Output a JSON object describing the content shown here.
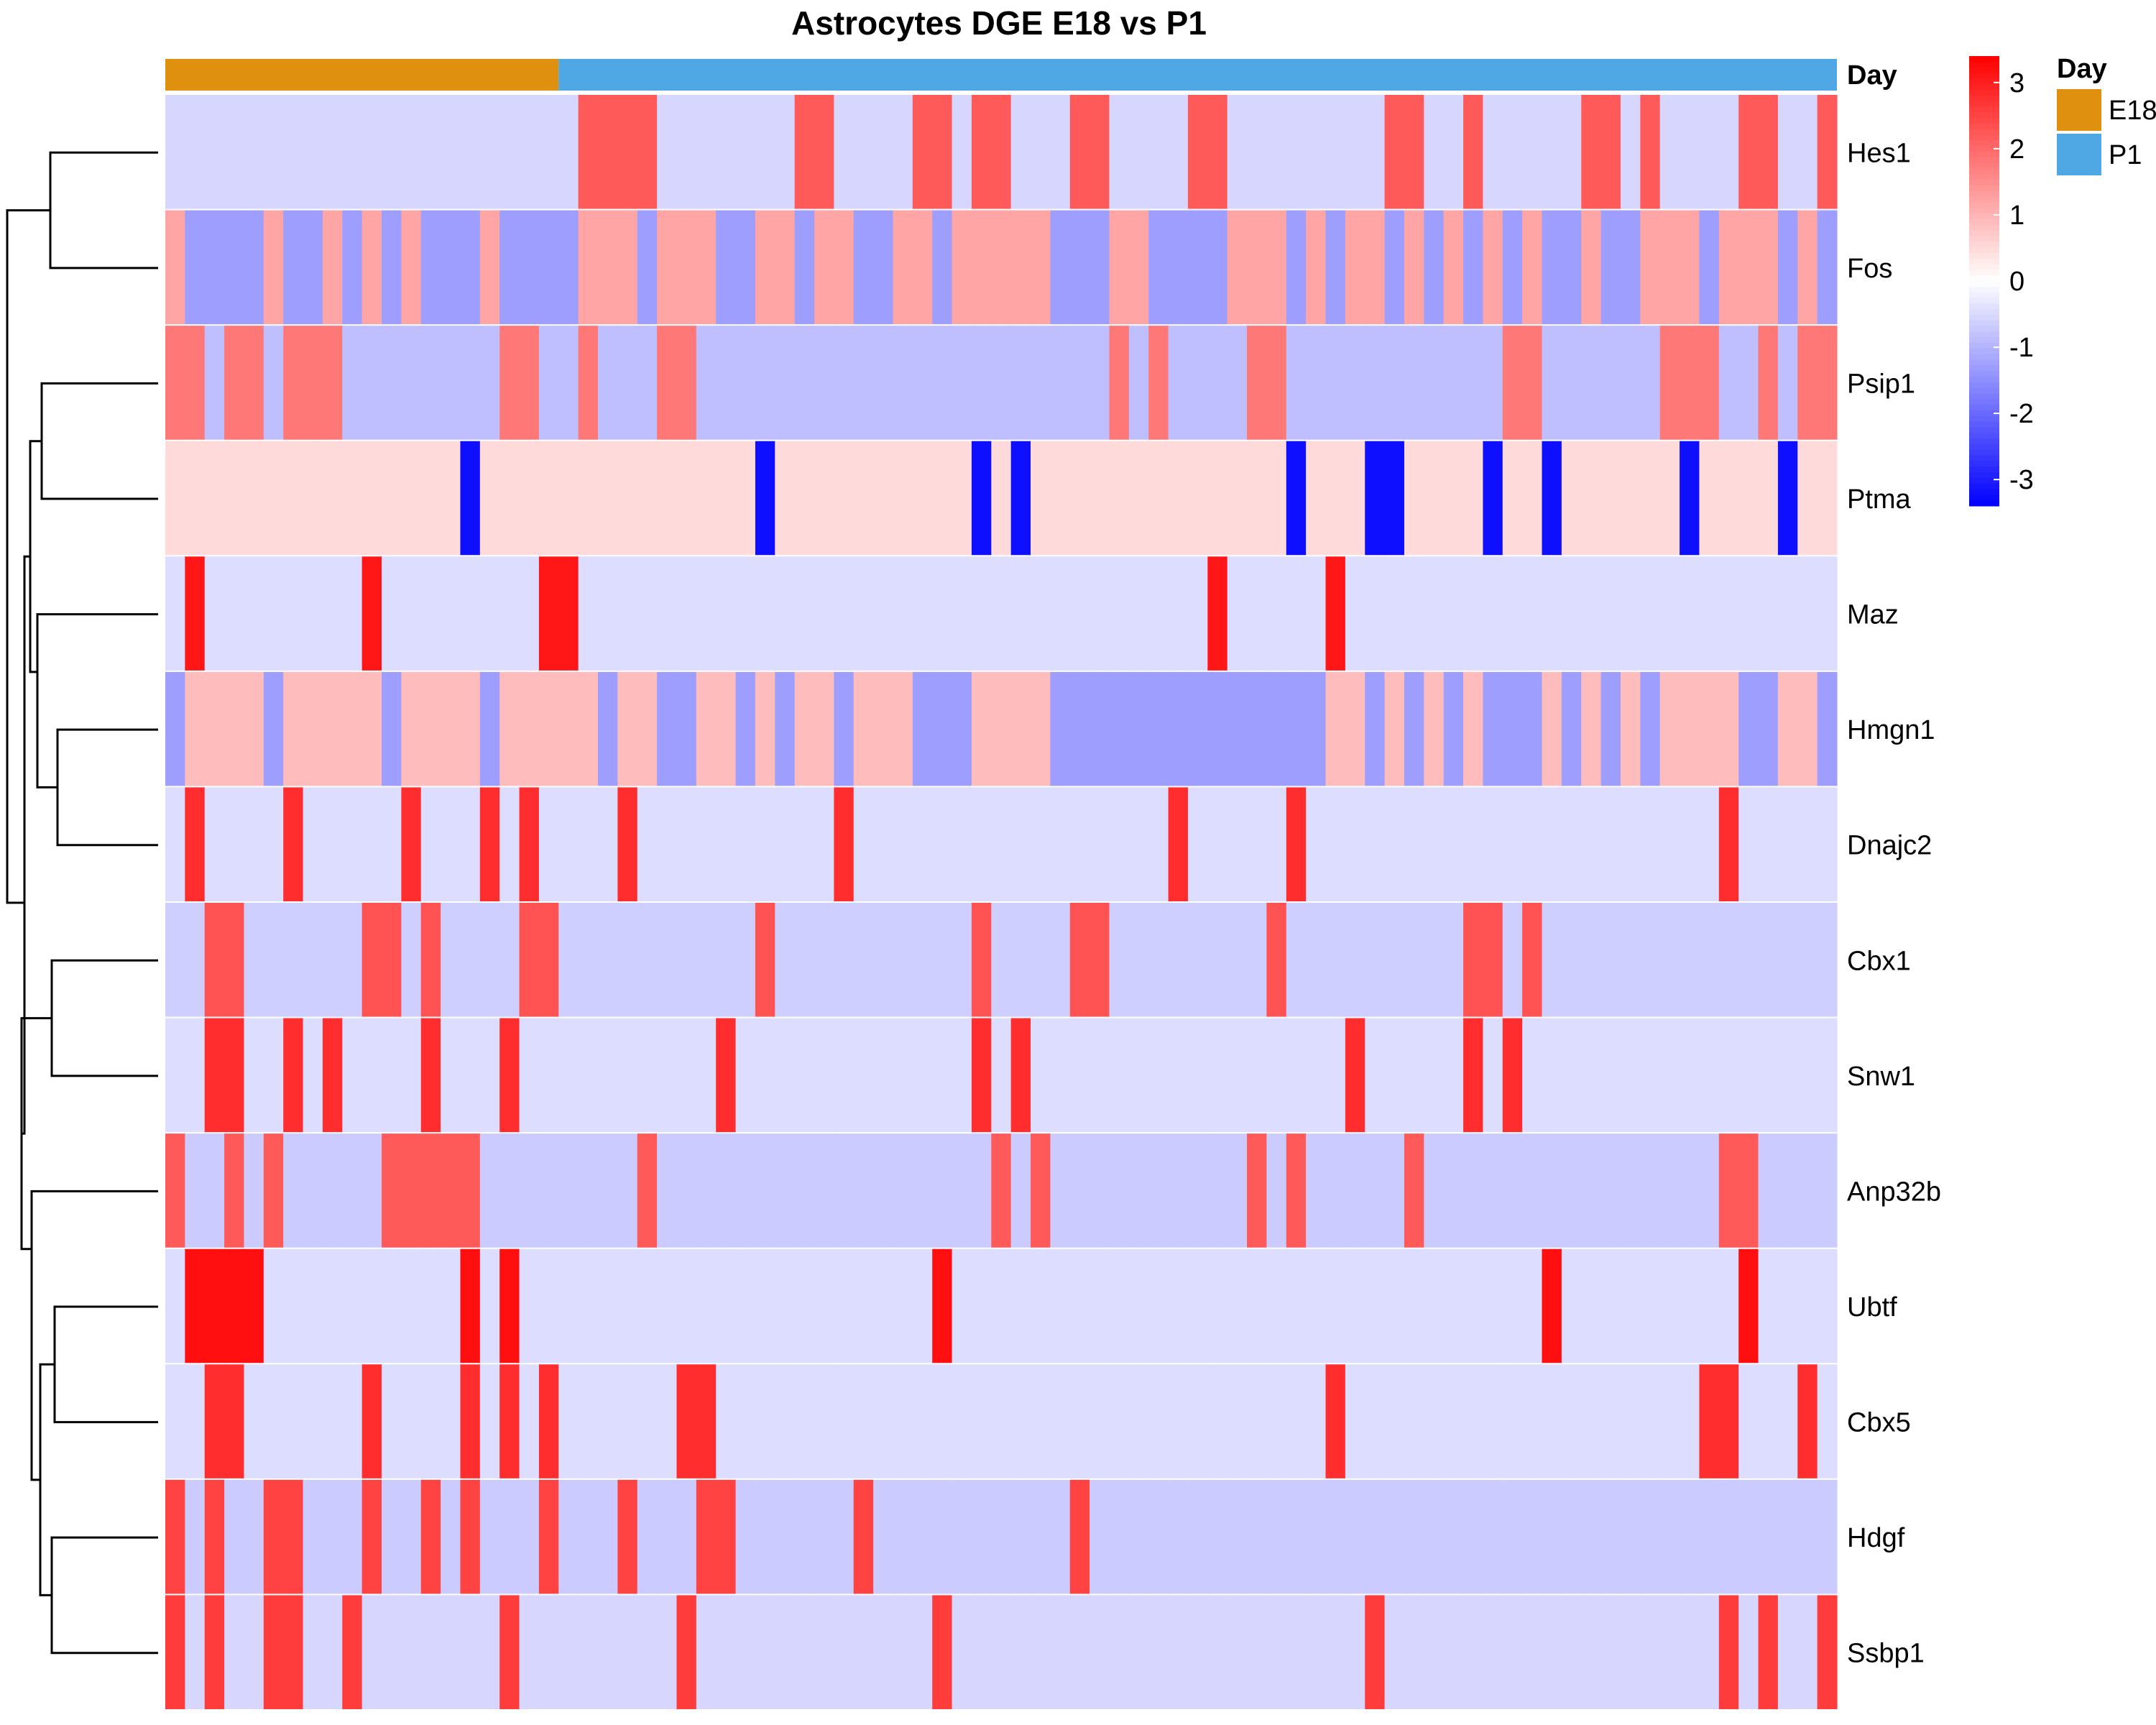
{
  "chart_data": {
    "type": "heatmap",
    "title": "Astrocytes DGE E18 vs P1",
    "rows": [
      "Hes1",
      "Fos",
      "Psip1",
      "Ptma",
      "Maz",
      "Hmgn1",
      "Dnajc2",
      "Cbx1",
      "Snw1",
      "Anp32b",
      "Ubtf",
      "Cbx5",
      "Hdgf",
      "Ssbp1"
    ],
    "columns_total": 85,
    "column_groups": [
      {
        "label": "E18",
        "count": 20,
        "color": "#E0900F"
      },
      {
        "label": "P1",
        "count": 65,
        "color": "#4FA8E3"
      }
    ],
    "annotation_title": "Day",
    "legend_title": "Day",
    "colorscale": {
      "min": -3.4,
      "max": 3.4,
      "low": "#0000FF",
      "mid": "#FFFFFF",
      "high": "#FF0000",
      "ticks": [
        3,
        2,
        1,
        0,
        -1,
        -2,
        -3
      ]
    },
    "values": {
      "Hes1": {
        "base": -0.55,
        "high": [
          21,
          22,
          23,
          24,
          32,
          33,
          38,
          39,
          41,
          42,
          46,
          47,
          52,
          53,
          62,
          63,
          66,
          72,
          73,
          75,
          80,
          81,
          84
        ],
        "highValue": 2.2
      },
      "Fos": {
        "base": -1.3,
        "high": [
          0,
          5,
          8,
          10,
          12,
          16,
          21,
          22,
          23,
          25,
          26,
          27,
          30,
          31,
          33,
          34,
          37,
          38,
          40,
          41,
          42,
          43,
          44,
          48,
          49,
          54,
          55,
          56,
          58,
          60,
          61,
          63,
          65,
          67,
          69,
          72,
          75,
          76,
          77,
          79,
          80,
          81,
          83
        ],
        "highValue": 1.2
      },
      "Psip1": {
        "base": -0.85,
        "high": [
          0,
          1,
          3,
          4,
          6,
          7,
          8,
          17,
          18,
          21,
          25,
          26,
          48,
          50,
          55,
          56,
          68,
          69,
          76,
          77,
          78,
          81,
          83,
          84
        ],
        "highValue": 1.8
      },
      "Ptma": {
        "base": 0.5,
        "high": [],
        "highValue": 0.5,
        "low": [
          15,
          30,
          41,
          43,
          57,
          61,
          62,
          67,
          70,
          77,
          82
        ],
        "lowValue": -3.2
      },
      "Maz": {
        "base": -0.45,
        "high": [
          1,
          10,
          19,
          20,
          53,
          59
        ],
        "highValue": 3.1
      },
      "Hmgn1": {
        "base": 0.9,
        "high": [],
        "highValue": 0.9,
        "low": [
          0,
          5,
          11,
          16,
          22,
          25,
          26,
          29,
          31,
          34,
          38,
          39,
          40,
          45,
          46,
          47,
          48,
          49,
          50,
          51,
          52,
          53,
          54,
          55,
          56,
          57,
          58,
          61,
          63,
          65,
          67,
          68,
          69,
          71,
          73,
          75,
          80,
          81,
          84
        ],
        "lowValue": -1.3
      },
      "Dnajc2": {
        "base": -0.45,
        "high": [
          1,
          6,
          12,
          16,
          18,
          23,
          34,
          51,
          57,
          79
        ],
        "highValue": 2.8
      },
      "Cbx1": {
        "base": -0.65,
        "high": [
          2,
          3,
          10,
          11,
          13,
          18,
          19,
          30,
          41,
          46,
          47,
          56,
          66,
          67,
          69
        ],
        "highValue": 2.3
      },
      "Snw1": {
        "base": -0.45,
        "high": [
          2,
          3,
          6,
          8,
          13,
          17,
          28,
          41,
          43,
          60,
          66,
          68
        ],
        "highValue": 2.8
      },
      "Anp32b": {
        "base": -0.7,
        "high": [
          0,
          3,
          5,
          11,
          12,
          13,
          14,
          15,
          24,
          42,
          44,
          55,
          57,
          63,
          79,
          80
        ],
        "highValue": 2.2
      },
      "Ubtf": {
        "base": -0.45,
        "high": [
          1,
          2,
          3,
          4,
          15,
          17,
          39,
          70,
          80
        ],
        "highValue": 3.2
      },
      "Cbx5": {
        "base": -0.45,
        "high": [
          2,
          3,
          10,
          15,
          17,
          19,
          26,
          27,
          59,
          78,
          79,
          83
        ],
        "highValue": 2.8
      },
      "Hdgf": {
        "base": -0.7,
        "high": [
          0,
          2,
          5,
          6,
          10,
          13,
          15,
          19,
          23,
          27,
          28,
          35,
          46
        ],
        "highValue": 2.5
      },
      "Ssbp1": {
        "base": -0.55,
        "high": [
          0,
          2,
          5,
          6,
          9,
          17,
          26,
          39,
          61,
          79,
          81,
          84
        ],
        "highValue": 2.6
      }
    }
  }
}
